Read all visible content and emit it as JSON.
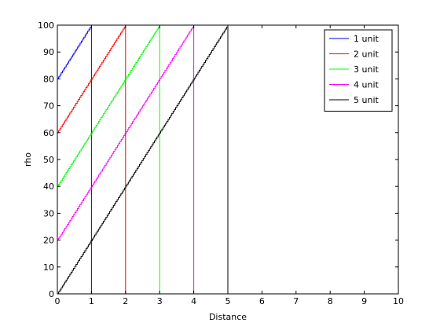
{
  "chart_data": {
    "type": "line",
    "title": "",
    "xlabel": "Distance",
    "ylabel": "rho",
    "xlim": [
      0,
      10
    ],
    "ylim": [
      0,
      100
    ],
    "xticks": [
      0,
      1,
      2,
      3,
      4,
      5,
      6,
      7,
      8,
      9,
      10
    ],
    "yticks": [
      0,
      10,
      20,
      30,
      40,
      50,
      60,
      70,
      80,
      90,
      100
    ],
    "grid": false,
    "legend_position": "top-right",
    "series": [
      {
        "name": "1 unit",
        "color": "#0000ff",
        "points": [
          [
            0,
            80
          ],
          [
            1,
            100
          ],
          [
            1,
            0
          ]
        ]
      },
      {
        "name": "2 unit",
        "color": "#ff0000",
        "points": [
          [
            0,
            60
          ],
          [
            2,
            100
          ],
          [
            2,
            0
          ]
        ]
      },
      {
        "name": "3 unit",
        "color": "#00ff00",
        "points": [
          [
            0,
            40
          ],
          [
            3,
            100
          ],
          [
            3,
            0
          ]
        ]
      },
      {
        "name": "4 unit",
        "color": "#ff00ff",
        "points": [
          [
            0,
            20
          ],
          [
            4,
            100
          ],
          [
            4,
            0
          ]
        ]
      },
      {
        "name": "5 unit",
        "color": "#000000",
        "points": [
          [
            0,
            0
          ],
          [
            5,
            100
          ],
          [
            5,
            0
          ]
        ]
      }
    ]
  }
}
